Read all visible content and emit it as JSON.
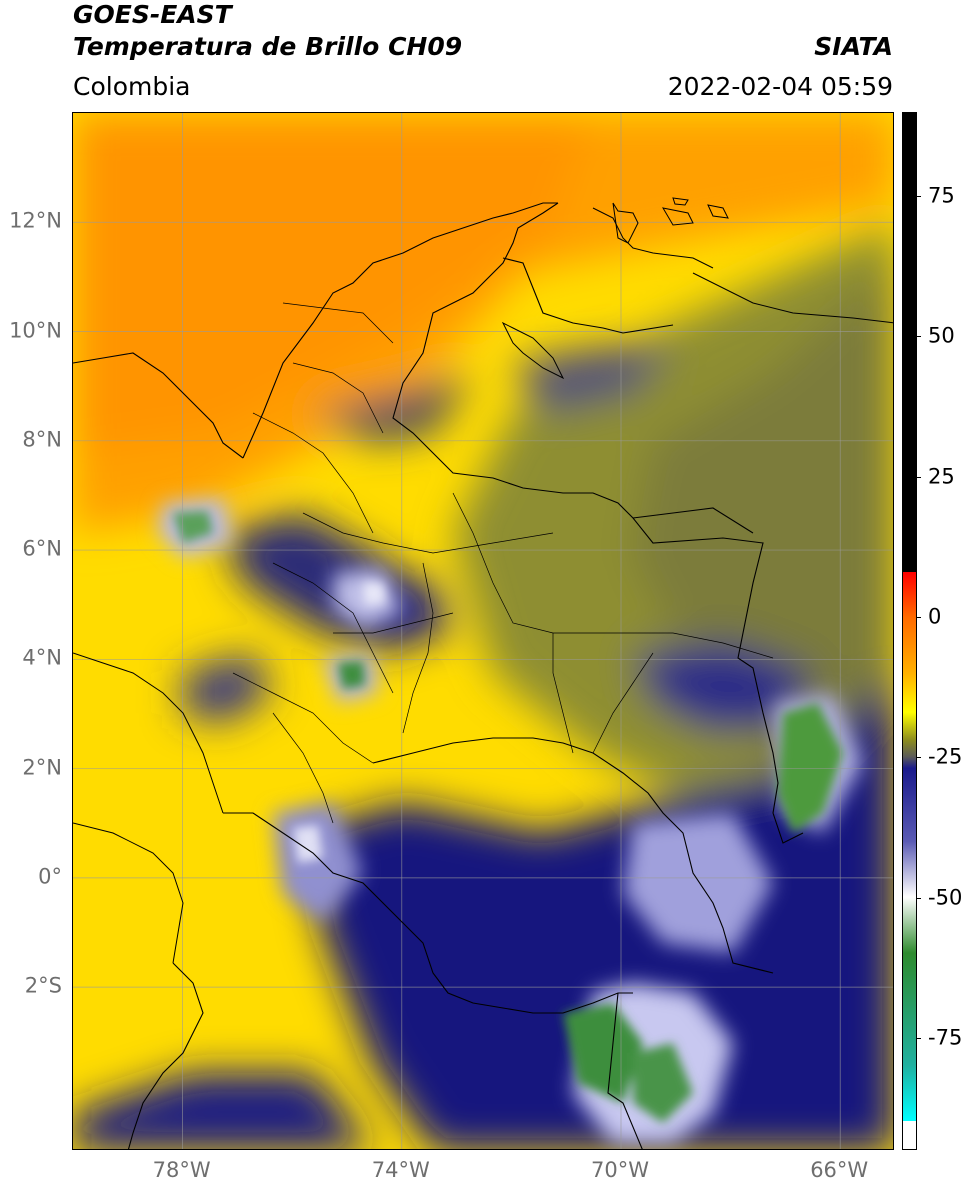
{
  "header": {
    "satellite": "GOES-EAST",
    "product": "Temperatura de Brillo CH09",
    "organization": "SIATA",
    "region": "Colombia",
    "datetime": "2022-02-04 05:59"
  },
  "map": {
    "lon_range": [
      -80,
      -65
    ],
    "lat_range": [
      -5,
      14
    ],
    "lon_ticks": [
      {
        "lon": -78,
        "label": "78°W"
      },
      {
        "lon": -74,
        "label": "74°W"
      },
      {
        "lon": -70,
        "label": "70°W"
      },
      {
        "lon": -66,
        "label": "66°W"
      }
    ],
    "lat_ticks": [
      {
        "lat": 12,
        "label": "12°N"
      },
      {
        "lat": 10,
        "label": "10°N"
      },
      {
        "lat": 8,
        "label": "8°N"
      },
      {
        "lat": 6,
        "label": "6°N"
      },
      {
        "lat": 4,
        "label": "4°N"
      },
      {
        "lat": 2,
        "label": "2°N"
      },
      {
        "lat": 0,
        "label": "0°"
      },
      {
        "lat": -2,
        "label": "2°S"
      }
    ],
    "gridlines": true
  },
  "colorbar": {
    "range": [
      -95,
      90
    ],
    "ticks": [
      {
        "value": 75,
        "label": "75"
      },
      {
        "value": 50,
        "label": "50"
      },
      {
        "value": 25,
        "label": "25"
      },
      {
        "value": 0,
        "label": "0"
      },
      {
        "value": -25,
        "label": "-25"
      },
      {
        "value": -50,
        "label": "-50"
      },
      {
        "value": -75,
        "label": "-75"
      }
    ],
    "stops": [
      {
        "value": 90,
        "color": "#000000"
      },
      {
        "value": 8,
        "color": "#000000"
      },
      {
        "value": 8,
        "color": "#ff0000"
      },
      {
        "value": 0,
        "color": "#ff6a00"
      },
      {
        "value": -10,
        "color": "#ffb000"
      },
      {
        "value": -17,
        "color": "#ffff00"
      },
      {
        "value": -22,
        "color": "#8c8c1e"
      },
      {
        "value": -25,
        "color": "#5a5a5a"
      },
      {
        "value": -27,
        "color": "#1a1a8c"
      },
      {
        "value": -40,
        "color": "#5a5ab4"
      },
      {
        "value": -50,
        "color": "#ffffff"
      },
      {
        "value": -60,
        "color": "#2e8b2e"
      },
      {
        "value": -80,
        "color": "#20b0a0"
      },
      {
        "value": -90,
        "color": "#00ffff"
      },
      {
        "value": -90,
        "color": "#ffffff"
      },
      {
        "value": -95,
        "color": "#ffffff"
      }
    ]
  },
  "colors": {
    "very_cold": "#ffffff",
    "coldest": "#2e8b2e",
    "cold": "#14147e",
    "mid": "#8c8c28",
    "warm": "#ffff00",
    "hot": "#ff9900"
  }
}
